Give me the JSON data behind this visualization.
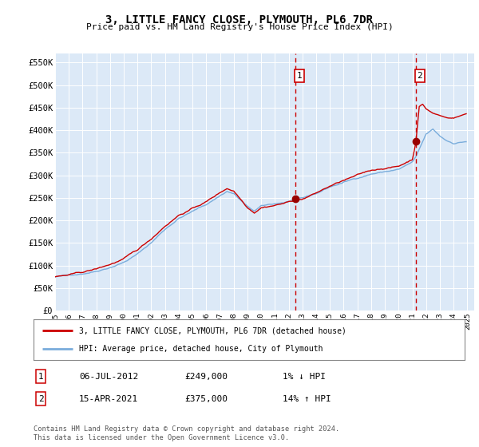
{
  "title": "3, LITTLE FANCY CLOSE, PLYMOUTH, PL6 7DR",
  "subtitle": "Price paid vs. HM Land Registry's House Price Index (HPI)",
  "background_color": "#dce9f7",
  "plot_bg_color": "#dce9f7",
  "ylim": [
    0,
    570000
  ],
  "yticks": [
    0,
    50000,
    100000,
    150000,
    200000,
    250000,
    300000,
    350000,
    400000,
    450000,
    500000,
    550000
  ],
  "ytick_labels": [
    "£0",
    "£50K",
    "£100K",
    "£150K",
    "£200K",
    "£250K",
    "£300K",
    "£350K",
    "£400K",
    "£450K",
    "£500K",
    "£550K"
  ],
  "sale1_date": 2012.5,
  "sale1_price": 249000,
  "sale1_label": "1",
  "sale2_date": 2021.25,
  "sale2_price": 375000,
  "sale2_label": "2",
  "legend_line1": "3, LITTLE FANCY CLOSE, PLYMOUTH, PL6 7DR (detached house)",
  "legend_line2": "HPI: Average price, detached house, City of Plymouth",
  "footer": "Contains HM Land Registry data © Crown copyright and database right 2024.\nThis data is licensed under the Open Government Licence v3.0.",
  "hpi_color": "#7aaddc",
  "price_color": "#cc0000",
  "dashed_color": "#cc0000",
  "marker_color": "#990000",
  "label_box_color": "#cc0000"
}
